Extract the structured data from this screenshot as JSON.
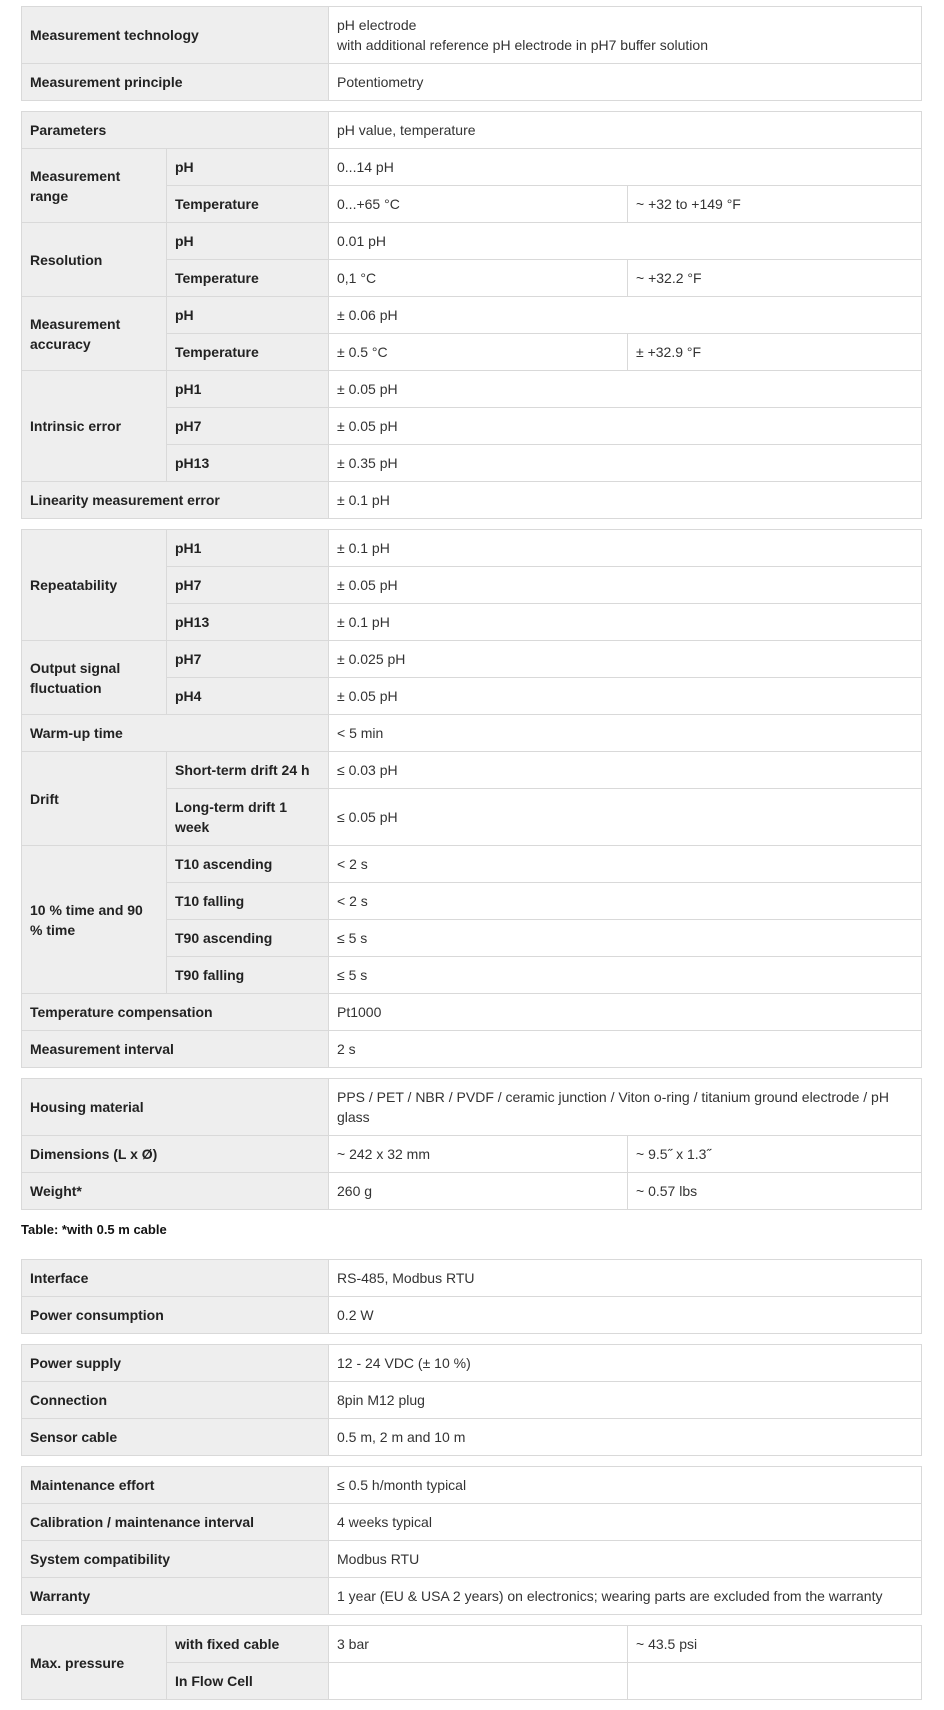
{
  "tables": [
    {
      "rows": [
        {
          "label": "Measurement technology",
          "value": "pH electrode\nwith additional reference pH electrode in pH7 buffer solution"
        },
        {
          "label": "Measurement principle",
          "value": "Potentiometry"
        }
      ]
    },
    {
      "rows": [
        {
          "label": "Parameters",
          "value": "pH value, temperature"
        },
        {
          "label": "Measurement range",
          "subs": [
            {
              "sub": "pH",
              "value": "0...14 pH"
            },
            {
              "sub": "Temperature",
              "value": "0...+65 °C",
              "value2": "~ +32 to +149 °F"
            }
          ]
        },
        {
          "label": "Resolution",
          "subs": [
            {
              "sub": "pH",
              "value": "0.01 pH"
            },
            {
              "sub": "Temperature",
              "value": "0,1 °C",
              "value2": "~ +32.2 °F"
            }
          ]
        },
        {
          "label": "Measurement accuracy",
          "subs": [
            {
              "sub": "pH",
              "value": "± 0.06 pH"
            },
            {
              "sub": "Temperature",
              "value": "± 0.5 °C",
              "value2": "± +32.9 °F"
            }
          ]
        },
        {
          "label": "Intrinsic error",
          "subs": [
            {
              "sub": "pH1",
              "value": "± 0.05 pH"
            },
            {
              "sub": "pH7",
              "value": "± 0.05 pH"
            },
            {
              "sub": "pH13",
              "value": "± 0.35 pH"
            }
          ]
        },
        {
          "label": "Linearity measurement error",
          "value": "± 0.1 pH"
        }
      ]
    },
    {
      "rows": [
        {
          "label": "Repeatability",
          "subs": [
            {
              "sub": "pH1",
              "value": "± 0.1 pH"
            },
            {
              "sub": "pH7",
              "value": "± 0.05 pH"
            },
            {
              "sub": "pH13",
              "value": "± 0.1 pH"
            }
          ]
        },
        {
          "label": "Output signal fluctuation",
          "subs": [
            {
              "sub": "pH7",
              "value": "± 0.025 pH"
            },
            {
              "sub": "pH4",
              "value": "± 0.05 pH"
            }
          ]
        },
        {
          "label": "Warm-up time",
          "value": "< 5 min"
        },
        {
          "label": "Drift",
          "subs": [
            {
              "sub": "Short-term drift 24 h",
              "value": "≤ 0.03 pH"
            },
            {
              "sub": "Long-term drift 1 week",
              "value": "≤ 0.05 pH"
            }
          ]
        },
        {
          "label": "10 % time and 90 % time",
          "subs": [
            {
              "sub": "T10 ascending",
              "value": "< 2 s"
            },
            {
              "sub": "T10 falling",
              "value": "< 2 s"
            },
            {
              "sub": "T90 ascending",
              "value": "≤ 5 s"
            },
            {
              "sub": "T90 falling",
              "value": "≤ 5 s"
            }
          ]
        },
        {
          "label": "Temperature compensation",
          "value": "Pt1000"
        },
        {
          "label": "Measurement interval",
          "value": "2 s"
        }
      ]
    },
    {
      "rows": [
        {
          "label": "Housing material",
          "value": "PPS / PET / NBR / PVDF / ceramic junction / Viton o-ring / titanium ground electrode / pH glass"
        },
        {
          "label": "Dimensions (L x Ø)",
          "value": "~ 242 x 32 mm",
          "value2": "~ 9.5˝ x 1.3˝"
        },
        {
          "label": "Weight*",
          "value": "260 g",
          "value2": "~ 0.57 lbs"
        }
      ],
      "caption": "Table: *with 0.5 m cable"
    },
    {
      "rows": [
        {
          "label": "Interface",
          "value": "RS-485, Modbus RTU"
        },
        {
          "label": "Power consumption",
          "value": "0.2 W"
        }
      ]
    },
    {
      "rows": [
        {
          "label": "Power supply",
          "value": "12 - 24 VDC (± 10 %)"
        },
        {
          "label": "Connection",
          "value": "8pin M12 plug"
        },
        {
          "label": "Sensor cable",
          "value": "0.5 m, 2 m and 10 m"
        }
      ]
    },
    {
      "rows": [
        {
          "label": "Maintenance effort",
          "value": "≤ 0.5 h/month typical"
        },
        {
          "label": "Calibration / maintenance interval",
          "value": "4 weeks typical"
        },
        {
          "label": "System compatibility",
          "value": "Modbus RTU"
        },
        {
          "label": "Warranty",
          "value": "1 year (EU & USA 2 years) on electronics; wearing parts are excluded from the warranty"
        }
      ]
    },
    {
      "rows": [
        {
          "label": "Max. pressure",
          "subs": [
            {
              "sub": "with fixed cable",
              "value": "3 bar",
              "value2": "~ 43.5 psi"
            },
            {
              "sub": "In Flow Cell",
              "value": "",
              "value2": ""
            }
          ]
        }
      ]
    }
  ]
}
